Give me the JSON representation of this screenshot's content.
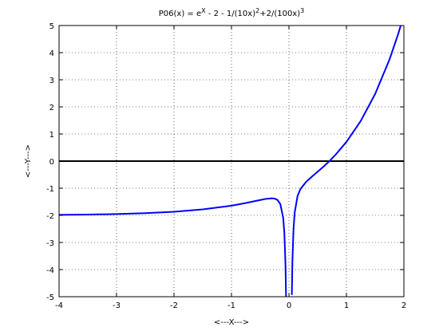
{
  "chart_data": {
    "type": "line",
    "title": [
      "P06(x) = e",
      "X",
      " - 2 - 1/(10x)",
      "2",
      "+2/(100x)",
      "3"
    ],
    "x_label": "<---X--->",
    "y_label": "<---Y--->",
    "series": [
      {
        "color": "#0000ff",
        "x": [
          -4,
          -3.5,
          -3,
          -2.5,
          -2,
          -1.5,
          -1,
          -0.75,
          -0.5,
          -0.4,
          -0.3,
          -0.25,
          -0.2,
          -0.15,
          -0.1,
          -0.08,
          -0.06,
          -0.05,
          0,
          0.05,
          0.06,
          0.08,
          0.1,
          0.15,
          0.2,
          0.3,
          0.4,
          0.5,
          0.6,
          0.7,
          0.8,
          1,
          1.25,
          1.5,
          1.75,
          1.9,
          2
        ],
        "values": [
          -1.982,
          -1.971,
          -1.951,
          -1.92,
          -1.867,
          -1.781,
          -1.642,
          -1.545,
          -1.434,
          -1.392,
          -1.37,
          -1.381,
          -1.432,
          -1.584,
          -2.097,
          -2.643,
          -3.845,
          -5.065,
          null,
          -4.933,
          -3.707,
          -2.475,
          -1.893,
          -1.282,
          -1.029,
          -0.761,
          -0.571,
          -0.391,
          -0.206,
          -0.007,
          0.21,
          0.708,
          1.484,
          2.477,
          3.751,
          4.683,
          5.387
        ]
      }
    ],
    "hline": {
      "value": 0,
      "color": "#000000"
    },
    "xlim": [
      -4,
      2
    ],
    "ylim": [
      -5,
      5
    ],
    "xticks": [
      -4,
      -3,
      -2,
      -1,
      0,
      1,
      2
    ],
    "yticks": [
      -5,
      -4,
      -3,
      -2,
      -1,
      0,
      1,
      2,
      3,
      4,
      5
    ],
    "grid": true
  }
}
